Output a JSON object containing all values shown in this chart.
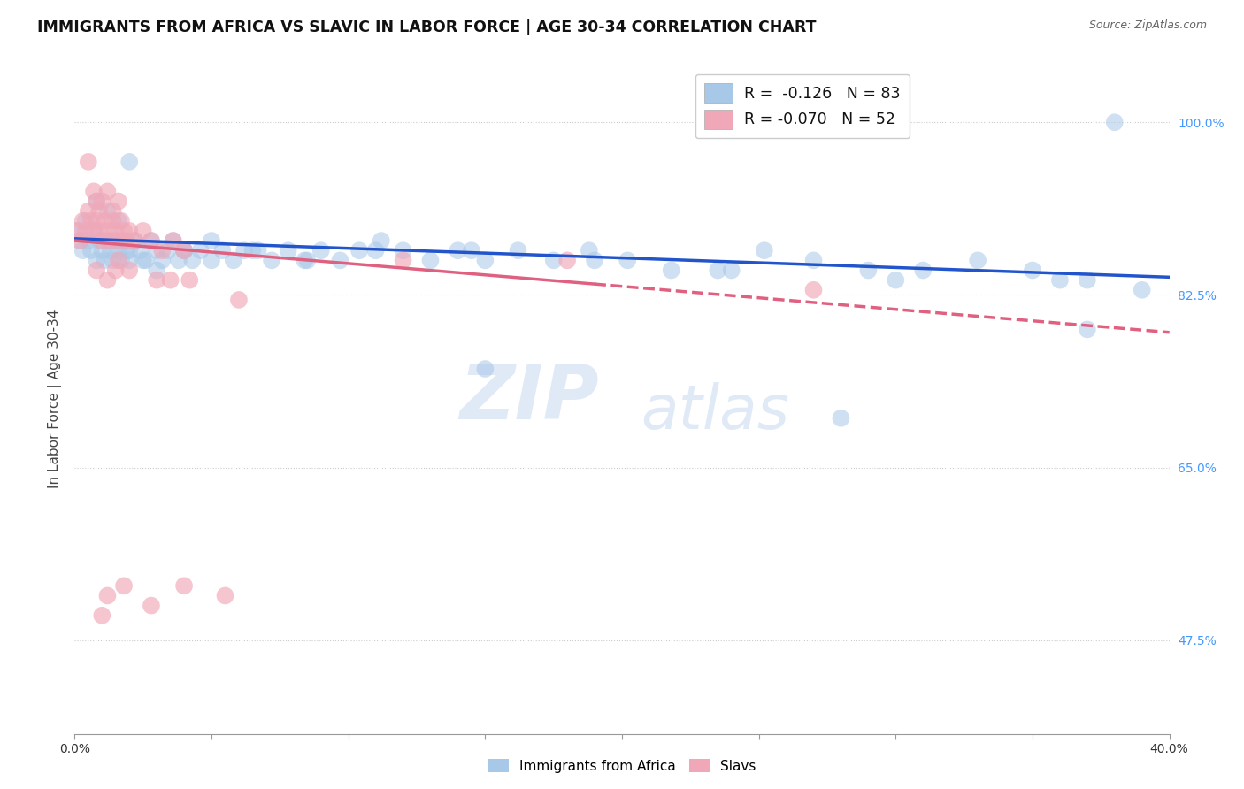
{
  "title": "IMMIGRANTS FROM AFRICA VS SLAVIC IN LABOR FORCE | AGE 30-34 CORRELATION CHART",
  "source": "Source: ZipAtlas.com",
  "ylabel": "In Labor Force | Age 30-34",
  "xlim": [
    0.0,
    0.4
  ],
  "ylim": [
    0.38,
    1.06
  ],
  "background_color": "#ffffff",
  "grid_color": "#cccccc",
  "title_color": "#111111",
  "blue_color": "#a8c8e8",
  "pink_color": "#f0a8b8",
  "blue_line_color": "#2255cc",
  "pink_line_color": "#e06080",
  "legend_blue_label": "Immigrants from Africa",
  "legend_pink_label": "Slavs",
  "R_blue": "-0.126",
  "N_blue": "83",
  "R_pink": "-0.070",
  "N_pink": "52",
  "watermark_zip": "ZIP",
  "watermark_atlas": "atlas",
  "ytick_positions": [
    0.475,
    0.65,
    0.825,
    1.0
  ],
  "ytick_labels": [
    "47.5%",
    "65.0%",
    "82.5%",
    "100.0%"
  ],
  "blue_scatter_x": [
    0.001,
    0.002,
    0.003,
    0.004,
    0.005,
    0.006,
    0.007,
    0.008,
    0.009,
    0.01,
    0.011,
    0.012,
    0.013,
    0.014,
    0.015,
    0.016,
    0.017,
    0.018,
    0.019,
    0.02,
    0.022,
    0.024,
    0.026,
    0.028,
    0.03,
    0.032,
    0.034,
    0.036,
    0.038,
    0.04,
    0.043,
    0.046,
    0.05,
    0.054,
    0.058,
    0.062,
    0.067,
    0.072,
    0.078,
    0.084,
    0.09,
    0.097,
    0.104,
    0.112,
    0.12,
    0.13,
    0.14,
    0.15,
    0.162,
    0.175,
    0.188,
    0.202,
    0.218,
    0.235,
    0.252,
    0.27,
    0.29,
    0.31,
    0.33,
    0.35,
    0.37,
    0.008,
    0.012,
    0.016,
    0.02,
    0.025,
    0.03,
    0.04,
    0.05,
    0.065,
    0.085,
    0.11,
    0.145,
    0.19,
    0.24,
    0.3,
    0.36,
    0.39,
    0.38,
    0.02,
    0.15,
    0.28,
    0.37
  ],
  "blue_scatter_y": [
    0.89,
    0.88,
    0.87,
    0.9,
    0.88,
    0.87,
    0.89,
    0.86,
    0.88,
    0.87,
    0.86,
    0.88,
    0.87,
    0.86,
    0.88,
    0.87,
    0.86,
    0.88,
    0.87,
    0.86,
    0.88,
    0.87,
    0.86,
    0.88,
    0.87,
    0.86,
    0.87,
    0.88,
    0.86,
    0.87,
    0.86,
    0.87,
    0.88,
    0.87,
    0.86,
    0.87,
    0.87,
    0.86,
    0.87,
    0.86,
    0.87,
    0.86,
    0.87,
    0.88,
    0.87,
    0.86,
    0.87,
    0.86,
    0.87,
    0.86,
    0.87,
    0.86,
    0.85,
    0.85,
    0.87,
    0.86,
    0.85,
    0.85,
    0.86,
    0.85,
    0.84,
    0.92,
    0.91,
    0.9,
    0.87,
    0.86,
    0.85,
    0.87,
    0.86,
    0.87,
    0.86,
    0.87,
    0.87,
    0.86,
    0.85,
    0.84,
    0.84,
    0.83,
    1.0,
    0.96,
    0.75,
    0.7,
    0.79
  ],
  "pink_scatter_x": [
    0.001,
    0.002,
    0.003,
    0.004,
    0.005,
    0.006,
    0.007,
    0.008,
    0.009,
    0.01,
    0.011,
    0.012,
    0.013,
    0.014,
    0.015,
    0.016,
    0.017,
    0.018,
    0.019,
    0.02,
    0.022,
    0.025,
    0.028,
    0.032,
    0.036,
    0.04,
    0.007,
    0.008,
    0.009,
    0.01,
    0.012,
    0.014,
    0.016,
    0.005,
    0.008,
    0.012,
    0.015,
    0.016,
    0.02,
    0.03,
    0.035,
    0.042,
    0.06,
    0.12,
    0.18,
    0.27,
    0.01,
    0.012,
    0.018,
    0.028,
    0.04,
    0.055
  ],
  "pink_scatter_y": [
    0.89,
    0.88,
    0.9,
    0.89,
    0.91,
    0.9,
    0.89,
    0.9,
    0.89,
    0.88,
    0.9,
    0.89,
    0.88,
    0.9,
    0.89,
    0.88,
    0.9,
    0.89,
    0.88,
    0.89,
    0.88,
    0.89,
    0.88,
    0.87,
    0.88,
    0.87,
    0.93,
    0.92,
    0.91,
    0.92,
    0.93,
    0.91,
    0.92,
    0.96,
    0.85,
    0.84,
    0.85,
    0.86,
    0.85,
    0.84,
    0.84,
    0.84,
    0.82,
    0.86,
    0.86,
    0.83,
    0.5,
    0.52,
    0.53,
    0.51,
    0.53,
    0.52
  ],
  "blue_trendline_x0": 0.0,
  "blue_trendline_x1": 0.4,
  "blue_trendline_y0": 0.882,
  "blue_trendline_y1": 0.843,
  "pink_trendline_solid_x0": 0.0,
  "pink_trendline_solid_x1": 0.19,
  "pink_trendline_y0": 0.88,
  "pink_trendline_y1": 0.836,
  "pink_trendline_dash_x0": 0.19,
  "pink_trendline_dash_x1": 0.4,
  "pink_trendline_dash_y0": 0.836,
  "pink_trendline_dash_y1": 0.787
}
